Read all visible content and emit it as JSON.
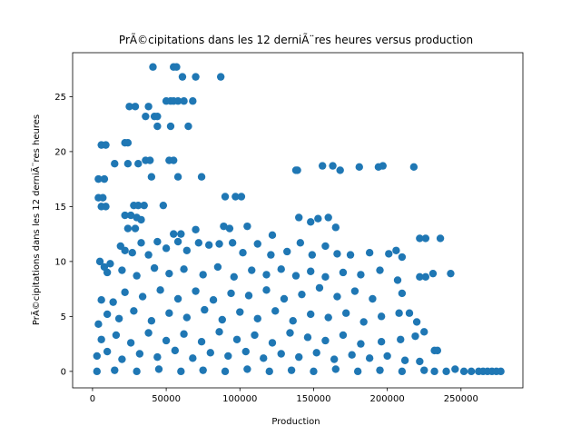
{
  "chart_data": {
    "type": "scatter",
    "title": "PrÃ©cipitations dans les 12 derniÃ¨res heures versus production",
    "xlabel": "Production",
    "ylabel": "PrÃ©cipitations dans les 12 derniÃ¨res heures",
    "xlim": [
      -13500,
      292000
    ],
    "ylim": [
      -1.5,
      29.0
    ],
    "xticks": [
      0,
      50000,
      100000,
      150000,
      200000,
      250000
    ],
    "xtick_labels": [
      "0",
      "50000",
      "100000",
      "150000",
      "200000",
      "250000"
    ],
    "yticks": [
      0,
      5,
      10,
      15,
      20,
      25
    ],
    "ytick_labels": [
      "0",
      "5",
      "10",
      "15",
      "20",
      "25"
    ],
    "grid": false,
    "color": "#1f77b4",
    "series": [
      {
        "points": [
          [
            41000,
            27.7
          ],
          [
            55000,
            27.7
          ],
          [
            57000,
            27.7
          ],
          [
            61000,
            26.8
          ],
          [
            70000,
            26.8
          ],
          [
            87000,
            26.8
          ],
          [
            50000,
            24.6
          ],
          [
            53000,
            24.6
          ],
          [
            55000,
            24.6
          ],
          [
            58000,
            24.6
          ],
          [
            62000,
            24.6
          ],
          [
            68000,
            24.6
          ],
          [
            25000,
            24.1
          ],
          [
            29000,
            24.1
          ],
          [
            38000,
            24.1
          ],
          [
            36000,
            23.2
          ],
          [
            42000,
            23.2
          ],
          [
            44000,
            23.2
          ],
          [
            44000,
            22.3
          ],
          [
            53000,
            22.3
          ],
          [
            65000,
            22.3
          ],
          [
            6000,
            20.6
          ],
          [
            9000,
            20.6
          ],
          [
            22000,
            20.8
          ],
          [
            24000,
            20.8
          ],
          [
            36000,
            19.2
          ],
          [
            39000,
            19.2
          ],
          [
            52000,
            19.2
          ],
          [
            55000,
            19.2
          ],
          [
            15000,
            18.9
          ],
          [
            24000,
            18.9
          ],
          [
            31000,
            18.9
          ],
          [
            4000,
            17.5
          ],
          [
            8000,
            17.5
          ],
          [
            40000,
            17.7
          ],
          [
            58000,
            17.7
          ],
          [
            74000,
            17.7
          ],
          [
            138000,
            18.3
          ],
          [
            139000,
            18.3
          ],
          [
            156000,
            18.7
          ],
          [
            163000,
            18.7
          ],
          [
            168000,
            18.3
          ],
          [
            181000,
            18.6
          ],
          [
            194000,
            18.6
          ],
          [
            197000,
            18.7
          ],
          [
            218000,
            18.6
          ],
          [
            4000,
            15.8
          ],
          [
            7000,
            15.8
          ],
          [
            6000,
            15.0
          ],
          [
            9000,
            15.0
          ],
          [
            28000,
            15.1
          ],
          [
            31000,
            15.1
          ],
          [
            35000,
            15.1
          ],
          [
            48000,
            15.1
          ],
          [
            90000,
            15.9
          ],
          [
            97000,
            15.9
          ],
          [
            101000,
            15.9
          ],
          [
            22000,
            14.2
          ],
          [
            26000,
            14.2
          ],
          [
            30000,
            14.0
          ],
          [
            33000,
            13.8
          ],
          [
            24000,
            13.0
          ],
          [
            29000,
            13.0
          ],
          [
            55000,
            12.5
          ],
          [
            60000,
            12.5
          ],
          [
            70000,
            12.9
          ],
          [
            89000,
            13.2
          ],
          [
            93000,
            13.0
          ],
          [
            105000,
            13.2
          ],
          [
            122000,
            12.4
          ],
          [
            140000,
            14.0
          ],
          [
            148000,
            13.6
          ],
          [
            153000,
            13.9
          ],
          [
            160000,
            14.0
          ],
          [
            165000,
            13.1
          ],
          [
            222000,
            12.1
          ],
          [
            226000,
            12.1
          ],
          [
            236000,
            12.1
          ],
          [
            5000,
            10.0
          ],
          [
            8000,
            9.5
          ],
          [
            12000,
            9.8
          ],
          [
            19000,
            11.4
          ],
          [
            22000,
            11.0
          ],
          [
            27000,
            10.8
          ],
          [
            33000,
            11.7
          ],
          [
            38000,
            10.6
          ],
          [
            44000,
            11.8
          ],
          [
            50000,
            11.2
          ],
          [
            58000,
            11.8
          ],
          [
            64000,
            11.0
          ],
          [
            72000,
            11.7
          ],
          [
            79000,
            11.5
          ],
          [
            86000,
            11.6
          ],
          [
            95000,
            11.7
          ],
          [
            102000,
            10.8
          ],
          [
            112000,
            11.6
          ],
          [
            121000,
            10.6
          ],
          [
            132000,
            10.9
          ],
          [
            141000,
            11.7
          ],
          [
            149000,
            10.6
          ],
          [
            158000,
            11.4
          ],
          [
            166000,
            10.7
          ],
          [
            175000,
            10.6
          ],
          [
            188000,
            10.8
          ],
          [
            201000,
            10.7
          ],
          [
            206000,
            11.0
          ],
          [
            210000,
            10.4
          ],
          [
            10000,
            9.0
          ],
          [
            20000,
            9.2
          ],
          [
            30000,
            8.7
          ],
          [
            42000,
            9.4
          ],
          [
            52000,
            8.9
          ],
          [
            62000,
            9.3
          ],
          [
            75000,
            8.8
          ],
          [
            85000,
            9.5
          ],
          [
            96000,
            8.6
          ],
          [
            108000,
            9.2
          ],
          [
            118000,
            8.8
          ],
          [
            128000,
            9.3
          ],
          [
            138000,
            8.7
          ],
          [
            148000,
            9.1
          ],
          [
            158000,
            8.6
          ],
          [
            170000,
            9.0
          ],
          [
            182000,
            8.8
          ],
          [
            195000,
            9.2
          ],
          [
            207000,
            8.3
          ],
          [
            222000,
            8.6
          ],
          [
            226000,
            8.6
          ],
          [
            231000,
            8.9
          ],
          [
            243000,
            8.9
          ],
          [
            6000,
            6.5
          ],
          [
            14000,
            6.3
          ],
          [
            22000,
            7.2
          ],
          [
            34000,
            6.8
          ],
          [
            46000,
            7.4
          ],
          [
            58000,
            6.6
          ],
          [
            70000,
            7.3
          ],
          [
            82000,
            6.5
          ],
          [
            94000,
            7.1
          ],
          [
            106000,
            6.9
          ],
          [
            118000,
            7.4
          ],
          [
            130000,
            6.6
          ],
          [
            142000,
            7.0
          ],
          [
            154000,
            7.6
          ],
          [
            166000,
            6.8
          ],
          [
            178000,
            7.3
          ],
          [
            190000,
            6.6
          ],
          [
            210000,
            7.1
          ],
          [
            4000,
            4.3
          ],
          [
            10000,
            5.2
          ],
          [
            18000,
            4.8
          ],
          [
            28000,
            5.5
          ],
          [
            40000,
            4.6
          ],
          [
            52000,
            5.3
          ],
          [
            64000,
            4.9
          ],
          [
            76000,
            5.6
          ],
          [
            88000,
            4.7
          ],
          [
            100000,
            5.4
          ],
          [
            112000,
            4.8
          ],
          [
            124000,
            5.5
          ],
          [
            136000,
            4.6
          ],
          [
            148000,
            5.2
          ],
          [
            160000,
            4.9
          ],
          [
            172000,
            5.3
          ],
          [
            184000,
            4.5
          ],
          [
            196000,
            5.0
          ],
          [
            208000,
            5.3
          ],
          [
            215000,
            5.3
          ],
          [
            220000,
            4.5
          ],
          [
            6000,
            2.9
          ],
          [
            16000,
            3.3
          ],
          [
            26000,
            2.6
          ],
          [
            38000,
            3.5
          ],
          [
            50000,
            2.8
          ],
          [
            62000,
            3.4
          ],
          [
            74000,
            2.7
          ],
          [
            86000,
            3.6
          ],
          [
            98000,
            2.9
          ],
          [
            110000,
            3.3
          ],
          [
            122000,
            2.6
          ],
          [
            134000,
            3.5
          ],
          [
            146000,
            3.1
          ],
          [
            158000,
            2.8
          ],
          [
            170000,
            3.3
          ],
          [
            182000,
            2.5
          ],
          [
            196000,
            2.7
          ],
          [
            209000,
            2.9
          ],
          [
            219000,
            3.2
          ],
          [
            225000,
            3.6
          ],
          [
            232000,
            1.9
          ],
          [
            234000,
            1.9
          ],
          [
            3000,
            1.4
          ],
          [
            10000,
            1.8
          ],
          [
            20000,
            1.1
          ],
          [
            32000,
            1.6
          ],
          [
            44000,
            1.3
          ],
          [
            56000,
            1.9
          ],
          [
            68000,
            1.2
          ],
          [
            80000,
            1.7
          ],
          [
            92000,
            1.4
          ],
          [
            104000,
            1.8
          ],
          [
            116000,
            1.2
          ],
          [
            128000,
            1.6
          ],
          [
            140000,
            1.3
          ],
          [
            152000,
            1.7
          ],
          [
            164000,
            1.1
          ],
          [
            176000,
            1.5
          ],
          [
            188000,
            1.2
          ],
          [
            200000,
            1.4
          ],
          [
            212000,
            1.0
          ],
          [
            222000,
            0.9
          ],
          [
            3000,
            0.0
          ],
          [
            15000,
            0.1
          ],
          [
            30000,
            0.0
          ],
          [
            45000,
            0.2
          ],
          [
            60000,
            0.0
          ],
          [
            75000,
            0.1
          ],
          [
            90000,
            0.0
          ],
          [
            105000,
            0.2
          ],
          [
            120000,
            0.0
          ],
          [
            135000,
            0.1
          ],
          [
            150000,
            0.0
          ],
          [
            165000,
            0.2
          ],
          [
            180000,
            0.0
          ],
          [
            195000,
            0.1
          ],
          [
            210000,
            0.0
          ],
          [
            225000,
            0.1
          ],
          [
            232000,
            0.0
          ],
          [
            240000,
            0.0
          ],
          [
            246000,
            0.2
          ],
          [
            252000,
            0.0
          ],
          [
            257000,
            0.0
          ],
          [
            262000,
            0.0
          ],
          [
            265000,
            0.0
          ],
          [
            268000,
            0.0
          ],
          [
            271000,
            0.0
          ],
          [
            274000,
            0.0
          ],
          [
            277000,
            0.0
          ]
        ]
      }
    ]
  }
}
